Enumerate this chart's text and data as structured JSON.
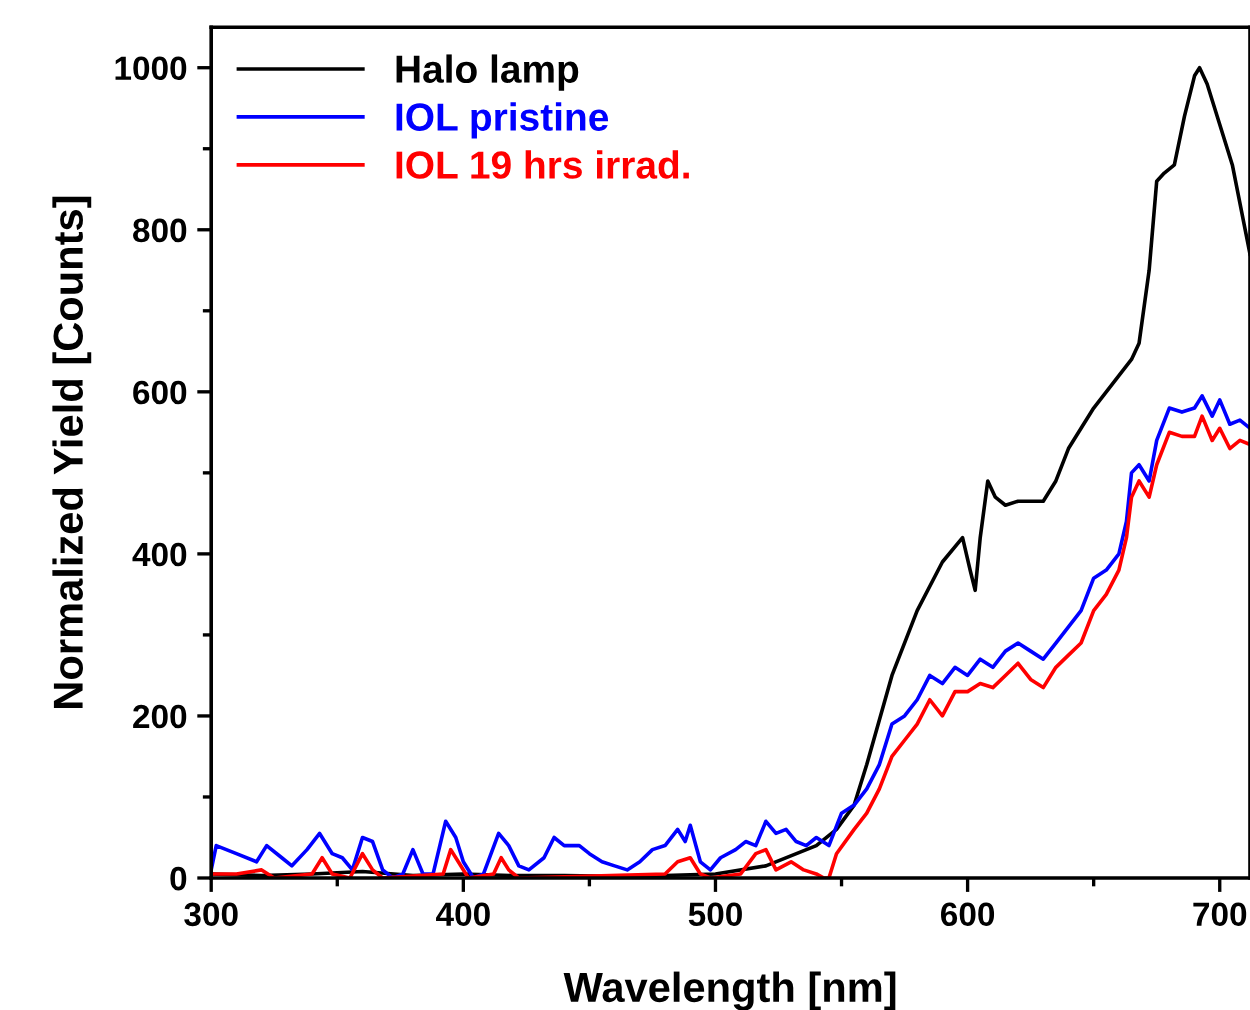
{
  "chart_data": {
    "type": "line",
    "xlabel": "Wavelength [nm]",
    "ylabel": "Normalized Yield [Counts]",
    "xlim": [
      300,
      712
    ],
    "ylim": [
      0,
      1050
    ],
    "xticks": [
      300,
      400,
      500,
      600,
      700
    ],
    "yticks": [
      0,
      200,
      400,
      600,
      800,
      1000
    ],
    "grid": false,
    "legend": "top left",
    "marker": "none",
    "line_style": "solid",
    "series": [
      {
        "name": "Halo lamp",
        "color": "#000000",
        "x": [
          300,
          320,
          340,
          360,
          380,
          400,
          420,
          440,
          460,
          480,
          500,
          520,
          540,
          548,
          555,
          560,
          570,
          580,
          590,
          598,
          601,
          603,
          605,
          608,
          611,
          615,
          620,
          630,
          635,
          640,
          650,
          660,
          665,
          668,
          672,
          675,
          678,
          682,
          686,
          690,
          692,
          695,
          700,
          705,
          712
        ],
        "values": [
          5,
          3,
          5,
          8,
          3,
          5,
          3,
          3,
          2,
          3,
          5,
          15,
          40,
          60,
          90,
          140,
          250,
          330,
          390,
          420,
          380,
          355,
          420,
          490,
          470,
          460,
          465,
          465,
          490,
          530,
          580,
          620,
          640,
          660,
          750,
          860,
          870,
          880,
          940,
          990,
          1000,
          980,
          930,
          880,
          770
        ]
      },
      {
        "name": "IOL pristine",
        "color": "#0000ff",
        "x": [
          300,
          302,
          310,
          318,
          322,
          328,
          332,
          338,
          343,
          348,
          352,
          356,
          360,
          364,
          368,
          372,
          376,
          380,
          384,
          388,
          393,
          397,
          400,
          404,
          408,
          414,
          418,
          422,
          426,
          432,
          436,
          440,
          446,
          450,
          455,
          460,
          465,
          470,
          475,
          480,
          485,
          488,
          490,
          494,
          498,
          502,
          508,
          512,
          516,
          520,
          524,
          528,
          532,
          536,
          540,
          545,
          550,
          555,
          560,
          565,
          570,
          575,
          580,
          585,
          590,
          595,
          600,
          605,
          610,
          615,
          620,
          625,
          630,
          635,
          640,
          645,
          650,
          655,
          660,
          663,
          665,
          668,
          672,
          675,
          680,
          685,
          690,
          693,
          697,
          700,
          704,
          708,
          712
        ],
        "values": [
          10,
          40,
          30,
          20,
          40,
          25,
          15,
          35,
          55,
          30,
          25,
          10,
          50,
          45,
          10,
          0,
          5,
          35,
          5,
          5,
          70,
          50,
          20,
          0,
          5,
          55,
          40,
          15,
          10,
          25,
          50,
          40,
          40,
          30,
          20,
          15,
          10,
          20,
          35,
          40,
          60,
          45,
          65,
          20,
          10,
          25,
          35,
          45,
          40,
          70,
          55,
          60,
          45,
          40,
          50,
          40,
          80,
          90,
          110,
          140,
          190,
          200,
          220,
          250,
          240,
          260,
          250,
          270,
          260,
          280,
          290,
          280,
          270,
          290,
          310,
          330,
          370,
          380,
          400,
          440,
          500,
          510,
          490,
          540,
          580,
          575,
          580,
          595,
          570,
          590,
          560,
          565,
          555
        ]
      },
      {
        "name": "IOL 19 hrs irrad.",
        "color": "#ff0000",
        "x": [
          300,
          310,
          320,
          325,
          340,
          344,
          348,
          355,
          360,
          364,
          368,
          392,
          395,
          398,
          402,
          412,
          415,
          418,
          422,
          480,
          485,
          490,
          494,
          498,
          510,
          516,
          520,
          524,
          530,
          535,
          540,
          543,
          545,
          548,
          555,
          560,
          565,
          570,
          575,
          580,
          585,
          590,
          595,
          600,
          605,
          610,
          615,
          620,
          625,
          630,
          635,
          640,
          645,
          650,
          655,
          660,
          663,
          665,
          668,
          672,
          675,
          680,
          685,
          690,
          693,
          697,
          700,
          704,
          708,
          712
        ],
        "values": [
          5,
          5,
          10,
          0,
          5,
          25,
          5,
          0,
          30,
          10,
          0,
          5,
          35,
          20,
          0,
          5,
          25,
          10,
          0,
          5,
          20,
          25,
          5,
          0,
          5,
          30,
          35,
          10,
          20,
          10,
          5,
          0,
          0,
          30,
          60,
          80,
          110,
          150,
          170,
          190,
          220,
          200,
          230,
          230,
          240,
          235,
          250,
          265,
          245,
          235,
          260,
          275,
          290,
          330,
          350,
          380,
          420,
          470,
          490,
          470,
          510,
          550,
          545,
          545,
          570,
          540,
          555,
          530,
          540,
          535
        ]
      }
    ]
  }
}
